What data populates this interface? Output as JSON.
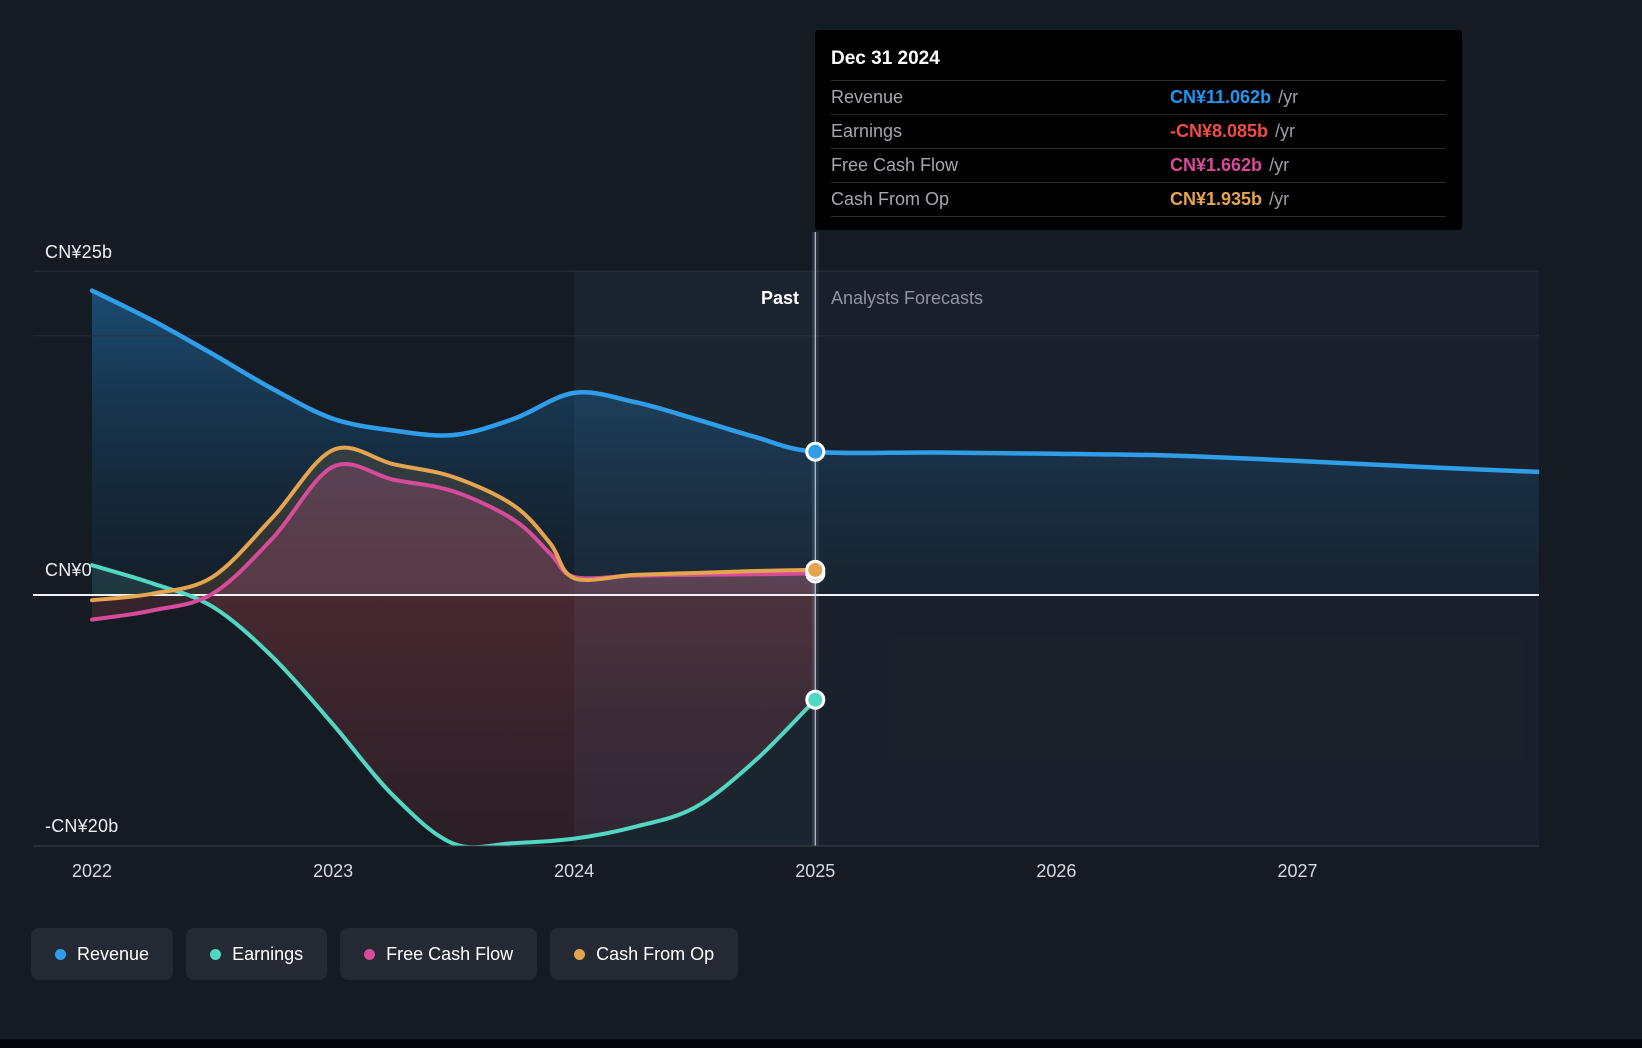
{
  "tooltip": {
    "date": "Dec 31 2024",
    "rows": [
      {
        "label": "Revenue",
        "value": "CN¥11.062b",
        "suffix": "/yr",
        "color": "#2196f3"
      },
      {
        "label": "Earnings",
        "value": "-CN¥8.085b",
        "suffix": "/yr",
        "color": "#ef4d45"
      },
      {
        "label": "Free Cash Flow",
        "value": "CN¥1.662b",
        "suffix": "/yr",
        "color": "#d74b9b"
      },
      {
        "label": "Cash From Op",
        "value": "CN¥1.935b",
        "suffix": "/yr",
        "color": "#e5a44f"
      }
    ]
  },
  "chart_data": {
    "type": "area",
    "unit": "CN¥b",
    "x_domain": [
      2021.76,
      2028
    ],
    "x_ticks": [
      {
        "label": "2022",
        "x": 2022
      },
      {
        "label": "2023",
        "x": 2023
      },
      {
        "label": "2024",
        "x": 2024
      },
      {
        "label": "2025",
        "x": 2025
      },
      {
        "label": "2026",
        "x": 2026
      },
      {
        "label": "2027",
        "x": 2027
      }
    ],
    "y_axis": {
      "top_label": "CN¥25b",
      "zero_label": "CN¥0",
      "bottom_label": "-CN¥20b",
      "max": 25,
      "min": -19.4,
      "gridline_values": [
        25,
        20
      ]
    },
    "divider": {
      "x": 2025,
      "past_label": "Past",
      "forecast_label": "Analysts Forecasts"
    },
    "series": [
      {
        "name": "Revenue",
        "color": "#2f9de8",
        "points": [
          [
            2022,
            23.5
          ],
          [
            2022.25,
            21.2
          ],
          [
            2022.5,
            18.6
          ],
          [
            2022.75,
            15.9
          ],
          [
            2023,
            13.6
          ],
          [
            2023.25,
            12.7
          ],
          [
            2023.5,
            12.35
          ],
          [
            2023.75,
            13.6
          ],
          [
            2024,
            15.6
          ],
          [
            2024.25,
            14.9
          ],
          [
            2024.5,
            13.6
          ],
          [
            2024.75,
            12.2
          ],
          [
            2025,
            11.062
          ]
        ],
        "forecast_points": [
          [
            2025,
            11.062
          ],
          [
            2025.5,
            11.0
          ],
          [
            2026,
            10.9
          ],
          [
            2026.5,
            10.75
          ],
          [
            2027,
            10.35
          ],
          [
            2027.5,
            9.9
          ],
          [
            2028,
            9.5
          ]
        ],
        "marker": {
          "x": 2025,
          "value": 11.062
        }
      },
      {
        "name": "Earnings",
        "color": "#52d7c3",
        "points": [
          [
            2022,
            2.3
          ],
          [
            2022.25,
            0.9
          ],
          [
            2022.5,
            -0.9
          ],
          [
            2022.75,
            -4.8
          ],
          [
            2023,
            -10.0
          ],
          [
            2023.25,
            -15.5
          ],
          [
            2023.5,
            -19.2
          ],
          [
            2023.75,
            -19.15
          ],
          [
            2024,
            -18.8
          ],
          [
            2024.25,
            -17.9
          ],
          [
            2024.5,
            -16.4
          ],
          [
            2024.75,
            -12.8
          ],
          [
            2025,
            -8.085
          ]
        ],
        "marker": {
          "x": 2025,
          "value": -8.085
        }
      },
      {
        "name": "Free Cash Flow",
        "color": "#d74b9b",
        "points": [
          [
            2022,
            -1.9
          ],
          [
            2022.25,
            -1.2
          ],
          [
            2022.5,
            0.1
          ],
          [
            2022.75,
            4.4
          ],
          [
            2023,
            9.9
          ],
          [
            2023.25,
            8.9
          ],
          [
            2023.5,
            8.0
          ],
          [
            2023.75,
            5.8
          ],
          [
            2023.9,
            3.2
          ],
          [
            2024,
            1.4
          ],
          [
            2024.25,
            1.5
          ],
          [
            2024.5,
            1.55
          ],
          [
            2024.75,
            1.6
          ],
          [
            2025,
            1.662
          ]
        ],
        "marker": {
          "x": 2025,
          "value": 1.662
        }
      },
      {
        "name": "Cash From Op",
        "color": "#e5a44f",
        "points": [
          [
            2022,
            -0.4
          ],
          [
            2022.25,
            0.1
          ],
          [
            2022.5,
            1.4
          ],
          [
            2022.75,
            6.0
          ],
          [
            2023,
            11.2
          ],
          [
            2023.25,
            10.1
          ],
          [
            2023.5,
            9.1
          ],
          [
            2023.75,
            6.9
          ],
          [
            2023.9,
            4.0
          ],
          [
            2024,
            1.3
          ],
          [
            2024.25,
            1.55
          ],
          [
            2024.5,
            1.7
          ],
          [
            2024.75,
            1.85
          ],
          [
            2025,
            1.935
          ]
        ],
        "marker": {
          "x": 2025,
          "value": 1.935
        }
      }
    ]
  },
  "legend": [
    {
      "label": "Revenue",
      "color": "#2f9de8"
    },
    {
      "label": "Earnings",
      "color": "#52d7c3"
    },
    {
      "label": "Free Cash Flow",
      "color": "#d74b9b"
    },
    {
      "label": "Cash From Op",
      "color": "#e5a44f"
    }
  ]
}
